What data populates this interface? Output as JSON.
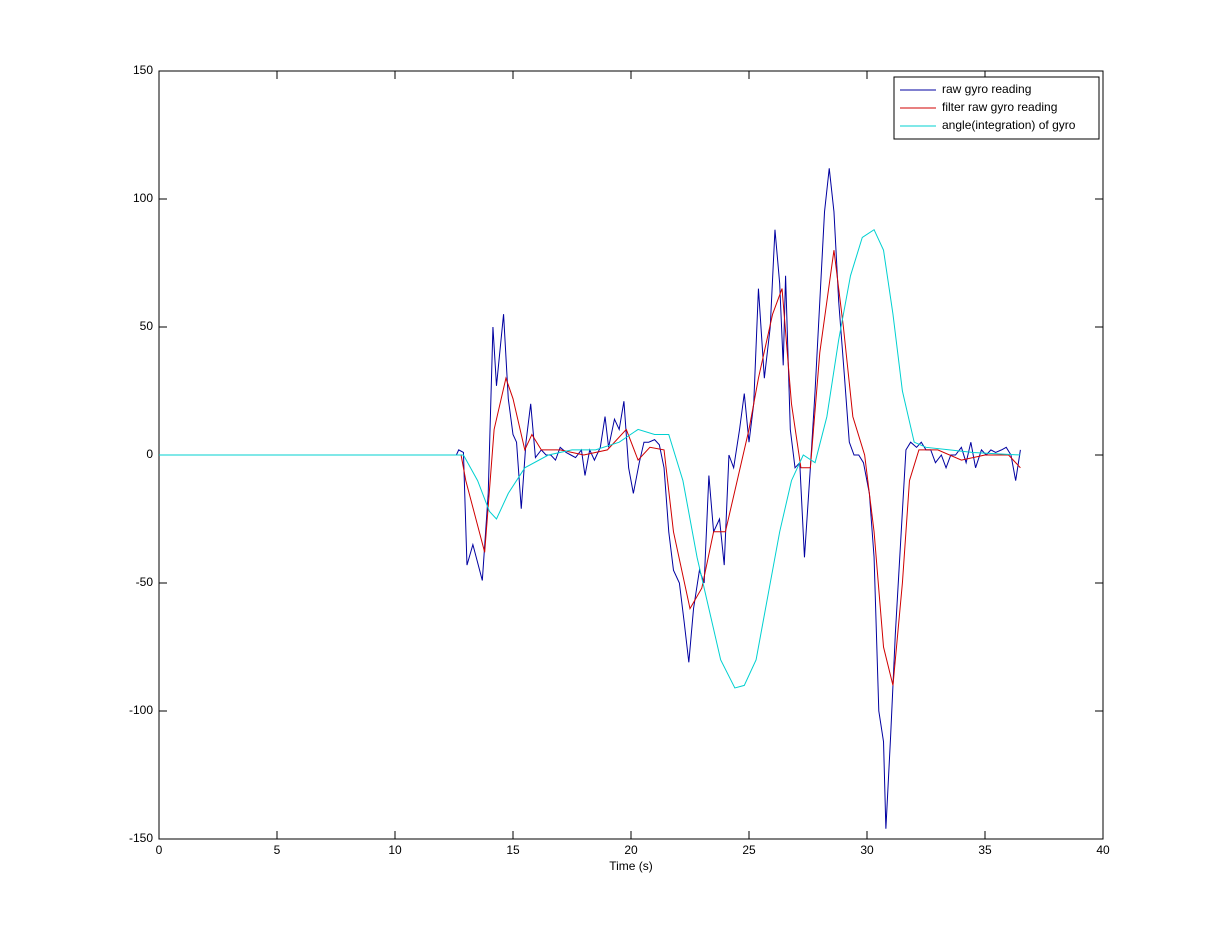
{
  "chart_data": {
    "type": "line",
    "xlabel": "Time (s)",
    "xlim": [
      0,
      40
    ],
    "xticks": [
      0,
      5,
      10,
      15,
      20,
      25,
      30,
      35,
      40
    ],
    "ylim": [
      -150,
      150
    ],
    "yticks": [
      -150,
      -100,
      -50,
      0,
      50,
      100,
      150
    ],
    "legend": "upper right",
    "series": [
      {
        "name": "raw gyro reading",
        "color": "#0000a0",
        "x": [
          0,
          12.6,
          12.7,
          12.9,
          13.05,
          13.3,
          13.5,
          13.7,
          13.95,
          14.15,
          14.3,
          14.6,
          14.8,
          15.0,
          15.15,
          15.35,
          15.55,
          15.75,
          15.95,
          16.2,
          16.4,
          16.6,
          16.8,
          17.0,
          17.25,
          17.45,
          17.65,
          17.9,
          18.05,
          18.25,
          18.45,
          18.7,
          18.9,
          19.05,
          19.3,
          19.5,
          19.7,
          19.9,
          20.1,
          20.35,
          20.55,
          20.75,
          21.0,
          21.2,
          21.4,
          21.6,
          21.8,
          22.05,
          22.25,
          22.45,
          22.65,
          22.9,
          23.1,
          23.3,
          23.5,
          23.75,
          23.95,
          24.15,
          24.35,
          24.6,
          24.8,
          25.0,
          25.2,
          25.4,
          25.65,
          25.9,
          26.1,
          26.3,
          26.45,
          26.55,
          26.75,
          26.95,
          27.15,
          27.35,
          27.6,
          27.8,
          28.0,
          28.2,
          28.4,
          28.6,
          28.8,
          29.05,
          29.25,
          29.45,
          29.65,
          29.85,
          30.1,
          30.3,
          30.5,
          30.7,
          30.8,
          31.0,
          31.2,
          31.45,
          31.65,
          31.85,
          32.1,
          32.3,
          32.5,
          32.7,
          32.9,
          33.15,
          33.35,
          33.55,
          33.75,
          34.0,
          34.2,
          34.4,
          34.6,
          34.85,
          35.05,
          35.25,
          35.45,
          35.7,
          35.9,
          36.1,
          36.3,
          36.5
        ],
        "values": [
          0,
          0,
          2,
          1,
          -43,
          -35,
          -42,
          -49,
          -15,
          50,
          27,
          55,
          22,
          8,
          5,
          -21,
          5,
          20,
          -1,
          2,
          0,
          0,
          -2,
          3,
          1,
          0,
          -1,
          2,
          -8,
          2,
          -2,
          3,
          15,
          3,
          14,
          10,
          21,
          -5,
          -15,
          -3,
          5,
          5,
          6,
          4,
          -5,
          -30,
          -45,
          -50,
          -65,
          -81,
          -60,
          -45,
          -50,
          -8,
          -30,
          -25,
          -43,
          0,
          -5,
          10,
          24,
          5,
          20,
          65,
          30,
          50,
          88,
          67,
          35,
          70,
          10,
          -5,
          -3,
          -40,
          -5,
          25,
          60,
          95,
          112,
          95,
          60,
          30,
          5,
          0,
          0,
          -3,
          -15,
          -40,
          -100,
          -112,
          -146,
          -110,
          -70,
          -30,
          2,
          5,
          3,
          5,
          2,
          2,
          -3,
          0,
          -5,
          0,
          0,
          3,
          -3,
          5,
          -5,
          2,
          0,
          2,
          1,
          2,
          3,
          0,
          -10,
          2
        ]
      },
      {
        "name": "filter raw gyro reading",
        "color": "#d00000",
        "x": [
          0,
          12.8,
          13.0,
          13.8,
          14.2,
          14.7,
          15.0,
          15.5,
          15.8,
          16.2,
          17,
          18,
          19,
          19.8,
          20.3,
          20.8,
          21.4,
          21.8,
          22.5,
          23,
          23.5,
          24,
          24.5,
          25.0,
          25.4,
          26,
          26.4,
          26.8,
          27.2,
          27.6,
          28.0,
          28.6,
          29.0,
          29.4,
          29.9,
          30.3,
          30.7,
          31.1,
          31.5,
          31.8,
          32.2,
          33,
          34,
          35,
          36,
          36.5
        ],
        "values": [
          0,
          0,
          -10,
          -38,
          10,
          30,
          22,
          2,
          8,
          2,
          2,
          0,
          2,
          10,
          -2,
          3,
          2,
          -30,
          -60,
          -52,
          -30,
          -30,
          -10,
          10,
          30,
          55,
          65,
          20,
          -5,
          -5,
          40,
          80,
          50,
          15,
          0,
          -30,
          -75,
          -90,
          -50,
          -10,
          2,
          2,
          -2,
          0,
          0,
          -5
        ]
      },
      {
        "name": "angle(integration) of gyro",
        "color": "#00d0d0",
        "x": [
          0,
          12.9,
          13.5,
          14.0,
          14.3,
          14.8,
          15.5,
          16.5,
          17.5,
          18.5,
          19.5,
          20.3,
          21,
          21.6,
          22.2,
          22.8,
          23.3,
          23.8,
          24.4,
          24.8,
          25.3,
          25.8,
          26.3,
          26.8,
          27.3,
          27.8,
          28.3,
          28.8,
          29.3,
          29.8,
          30.3,
          30.7,
          31.1,
          31.5,
          32,
          32.5,
          33.5,
          34.5,
          36.5
        ],
        "values": [
          0,
          0,
          -10,
          -22,
          -25,
          -15,
          -5,
          0,
          2,
          2,
          5,
          10,
          8,
          8,
          -10,
          -40,
          -60,
          -80,
          -91,
          -90,
          -80,
          -55,
          -30,
          -10,
          0,
          -3,
          15,
          45,
          70,
          85,
          88,
          80,
          55,
          25,
          5,
          3,
          2,
          1,
          0
        ]
      }
    ]
  }
}
